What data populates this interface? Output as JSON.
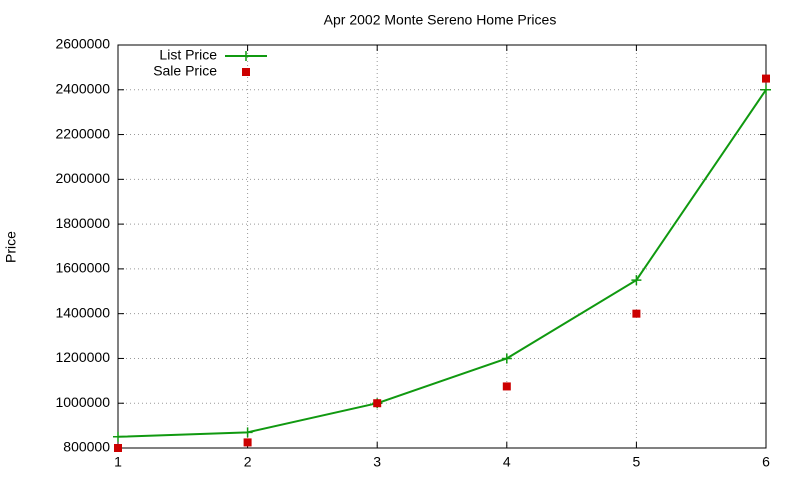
{
  "chart_data": {
    "type": "line",
    "title": "Apr 2002 Monte Sereno Home Prices",
    "y_label": "Price",
    "x": [
      1,
      2,
      3,
      4,
      5,
      6
    ],
    "series": [
      {
        "name": "List Price",
        "color": "#109910",
        "style": "linespoints",
        "values": [
          850000,
          870000,
          1000000,
          1200000,
          1550000,
          2400000
        ]
      },
      {
        "name": "Sale Price",
        "color": "#cc0000",
        "style": "points",
        "values": [
          800000,
          825000,
          1000000,
          1075000,
          1400000,
          2450000
        ]
      }
    ],
    "xlim": [
      1,
      6
    ],
    "xticks": [
      1,
      2,
      3,
      4,
      5,
      6
    ],
    "ylim": [
      800000,
      2600000
    ],
    "yticks": [
      800000,
      1000000,
      1200000,
      1400000,
      1600000,
      1800000,
      2000000,
      2200000,
      2400000,
      2600000
    ],
    "grid": true,
    "legend": "top-left"
  }
}
